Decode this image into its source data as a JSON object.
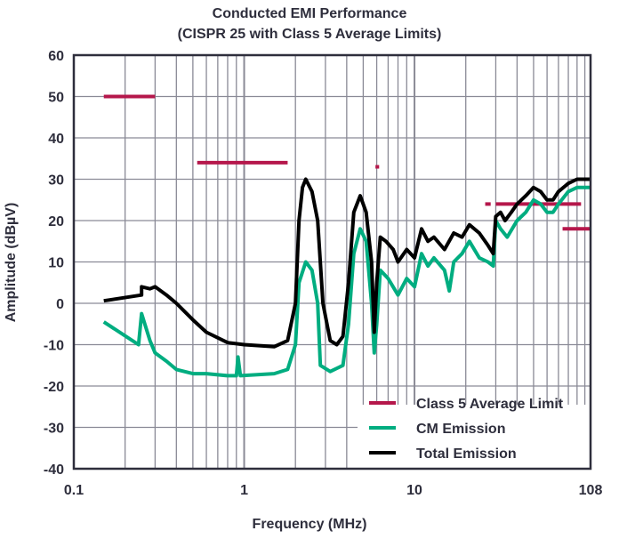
{
  "chart_data": {
    "type": "line",
    "title": "Conducted EMI Performance",
    "subtitle": "(CISPR 25 with Class 5 Average Limits)",
    "xlabel": "Frequency (MHz)",
    "ylabel": "Amplitude (dBµV)",
    "xscale": "log",
    "xlim": [
      0.1,
      108
    ],
    "ylim": [
      -40,
      60
    ],
    "xticks": [
      {
        "v": 0.1,
        "label": "0.1"
      },
      {
        "v": 1,
        "label": "1"
      },
      {
        "v": 10,
        "label": "10"
      },
      {
        "v": 108,
        "label": "108"
      }
    ],
    "yticks": [
      60,
      50,
      40,
      30,
      20,
      10,
      0,
      -10,
      -20,
      -30,
      -40
    ],
    "grid": true,
    "legend_placement": "bottom-right",
    "series": [
      {
        "name": "Class 5 Average Limit",
        "color": "#b5174b",
        "kind": "segments",
        "segments": [
          [
            0.15,
            0.3,
            50
          ],
          [
            0.53,
            1.8,
            34
          ],
          [
            5.9,
            6.2,
            33
          ],
          [
            26,
            28,
            24
          ],
          [
            30,
            95,
            24
          ],
          [
            74,
            108,
            18
          ]
        ]
      },
      {
        "name": "CM Emission",
        "color": "#00ad80",
        "points": [
          [
            0.15,
            -4.5
          ],
          [
            0.24,
            -10
          ],
          [
            0.25,
            -2.5
          ],
          [
            0.28,
            -9
          ],
          [
            0.3,
            -12
          ],
          [
            0.35,
            -14
          ],
          [
            0.4,
            -16
          ],
          [
            0.5,
            -17
          ],
          [
            0.6,
            -17
          ],
          [
            0.8,
            -17.5
          ],
          [
            0.9,
            -17.5
          ],
          [
            0.92,
            -13
          ],
          [
            0.95,
            -17.5
          ],
          [
            1.5,
            -17
          ],
          [
            1.8,
            -16
          ],
          [
            2.0,
            -10
          ],
          [
            2.1,
            5
          ],
          [
            2.3,
            10
          ],
          [
            2.5,
            8
          ],
          [
            2.7,
            0
          ],
          [
            2.8,
            -15
          ],
          [
            3.2,
            -16.5
          ],
          [
            3.8,
            -15
          ],
          [
            4.1,
            -5
          ],
          [
            4.4,
            12
          ],
          [
            4.8,
            18
          ],
          [
            5.2,
            15
          ],
          [
            5.6,
            0
          ],
          [
            5.8,
            -12
          ],
          [
            6.0,
            -5
          ],
          [
            6.3,
            8
          ],
          [
            7,
            6
          ],
          [
            8,
            2
          ],
          [
            9,
            6
          ],
          [
            10,
            4
          ],
          [
            11,
            12
          ],
          [
            12,
            9
          ],
          [
            13,
            11
          ],
          [
            15,
            8
          ],
          [
            16,
            3
          ],
          [
            17,
            10
          ],
          [
            19,
            12
          ],
          [
            21,
            15
          ],
          [
            24,
            11
          ],
          [
            27,
            10
          ],
          [
            29,
            9
          ],
          [
            30,
            20
          ],
          [
            32,
            18
          ],
          [
            35,
            16
          ],
          [
            40,
            20
          ],
          [
            45,
            22
          ],
          [
            50,
            25
          ],
          [
            55,
            24
          ],
          [
            60,
            22
          ],
          [
            65,
            22
          ],
          [
            70,
            24
          ],
          [
            80,
            27
          ],
          [
            90,
            28
          ],
          [
            108,
            28
          ]
        ]
      },
      {
        "name": "Total Emission",
        "color": "#000000",
        "points": [
          [
            0.15,
            0.6
          ],
          [
            0.25,
            2
          ],
          [
            0.25,
            4
          ],
          [
            0.28,
            3.5
          ],
          [
            0.3,
            4
          ],
          [
            0.35,
            2
          ],
          [
            0.4,
            0
          ],
          [
            0.5,
            -4
          ],
          [
            0.6,
            -7
          ],
          [
            0.8,
            -9.5
          ],
          [
            1,
            -10
          ],
          [
            1.5,
            -10.5
          ],
          [
            1.8,
            -9
          ],
          [
            2.0,
            0
          ],
          [
            2.1,
            20
          ],
          [
            2.2,
            28
          ],
          [
            2.3,
            30
          ],
          [
            2.5,
            27
          ],
          [
            2.7,
            20
          ],
          [
            2.9,
            0
          ],
          [
            3.2,
            -9
          ],
          [
            3.5,
            -10
          ],
          [
            3.8,
            -8
          ],
          [
            4.1,
            5
          ],
          [
            4.4,
            22
          ],
          [
            4.8,
            26
          ],
          [
            5.2,
            22
          ],
          [
            5.6,
            10
          ],
          [
            5.8,
            -7
          ],
          [
            6.0,
            5
          ],
          [
            6.3,
            16
          ],
          [
            6.8,
            15
          ],
          [
            7.5,
            13
          ],
          [
            8,
            10
          ],
          [
            9,
            13
          ],
          [
            10,
            11
          ],
          [
            11,
            18
          ],
          [
            12,
            15
          ],
          [
            13,
            16
          ],
          [
            15,
            13
          ],
          [
            17,
            17
          ],
          [
            19,
            16
          ],
          [
            21,
            19
          ],
          [
            24,
            17
          ],
          [
            27,
            14
          ],
          [
            29,
            12
          ],
          [
            30,
            21
          ],
          [
            32,
            22
          ],
          [
            34,
            20
          ],
          [
            37,
            22
          ],
          [
            40,
            24
          ],
          [
            45,
            26
          ],
          [
            50,
            28
          ],
          [
            55,
            27
          ],
          [
            60,
            25
          ],
          [
            65,
            25
          ],
          [
            70,
            27
          ],
          [
            80,
            29
          ],
          [
            90,
            30
          ],
          [
            108,
            30
          ]
        ]
      }
    ]
  }
}
